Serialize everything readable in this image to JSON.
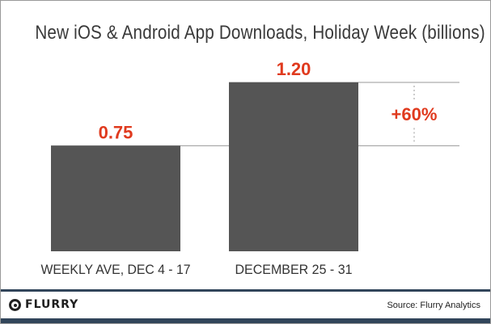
{
  "chart_data": {
    "type": "bar",
    "title": "New iOS & Android App Downloads, Holiday Week (billions)",
    "categories": [
      "WEEKLY AVE, DEC 4 - 17",
      "DECEMBER 25 - 31"
    ],
    "values": [
      0.75,
      1.2
    ],
    "value_labels": [
      "0.75",
      "1.20"
    ],
    "annotation": "+60%",
    "bar_color": "#555555",
    "label_color": "#e03a1e",
    "ylim": [
      0,
      1.2
    ]
  },
  "footer": {
    "logo_text": "FLURRY",
    "source": "Source: Flurry Analytics"
  }
}
